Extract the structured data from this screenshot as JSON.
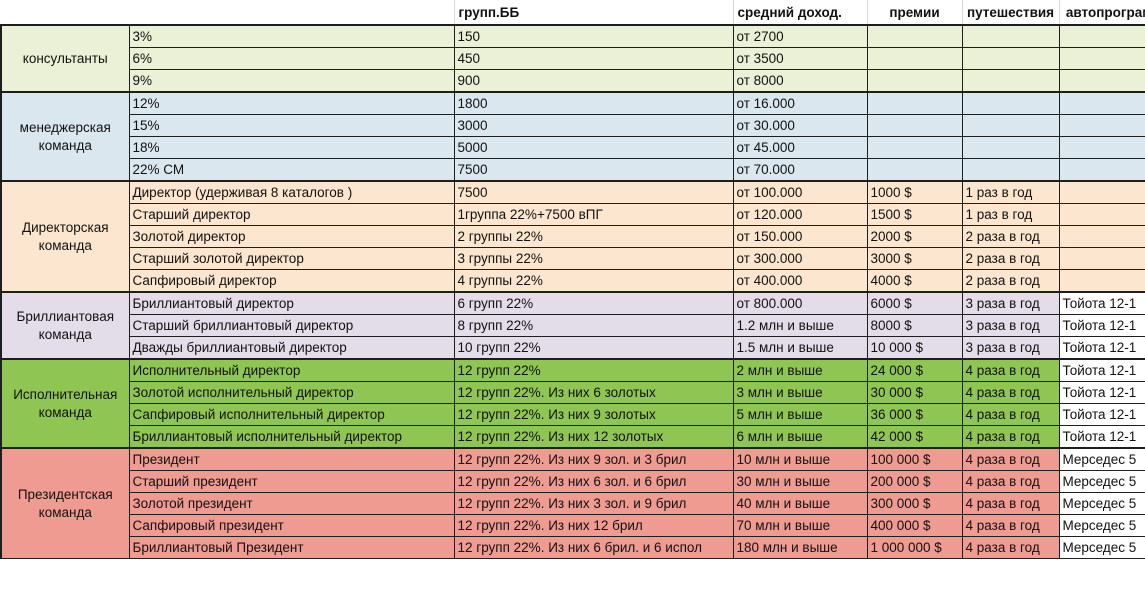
{
  "headers": [
    "",
    "",
    "групп.ББ",
    "средний доход.",
    "премии",
    "путешествия",
    "автопрограмма"
  ],
  "groups": [
    {
      "name": "консультанты",
      "cls": "g-cons",
      "rows": [
        {
          "level": "3%",
          "bb": "150",
          "income": " от 2700",
          "bonus": "",
          "travel": "",
          "car": ""
        },
        {
          "level": "6%",
          "bb": "450",
          "income": "от 3500",
          "bonus": "",
          "travel": "",
          "car": ""
        },
        {
          "level": "9%",
          "bb": "900",
          "income": "от 8000",
          "bonus": "",
          "travel": "",
          "car": ""
        }
      ]
    },
    {
      "name": "менеджерская команда",
      "cls": "g-mgr",
      "rows": [
        {
          "level": "12%",
          "bb": "1800",
          "income": "от 16.000",
          "bonus": "",
          "travel": "",
          "car": ""
        },
        {
          "level": "15%",
          "bb": "3000",
          "income": "от 30.000",
          "bonus": "",
          "travel": "",
          "car": ""
        },
        {
          "level": "18%",
          "bb": "5000",
          "income": "от 45.000",
          "bonus": "",
          "travel": "",
          "car": ""
        },
        {
          "level": "22% СМ",
          "bb": "7500",
          "income": "от 70.000",
          "bonus": "",
          "travel": "",
          "car": ""
        }
      ]
    },
    {
      "name": "Директорская команда",
      "cls": "g-dir",
      "rows": [
        {
          "level": "Директор  (удерживая 8 каталогов )",
          "bb": "7500",
          "income": "от 100.000",
          "bonus": "1000 $",
          "travel": "1 раз в год",
          "car": ""
        },
        {
          "level": "Старший директор",
          "bb": "1группа 22%+7500 вПГ",
          "income": "от 120.000",
          "bonus": "1500 $",
          "travel": "1 раз в год",
          "car": ""
        },
        {
          "level": "Золотой директор",
          "bb": "2 группы 22%",
          "income": "от 150.000",
          "bonus": "2000 $",
          "travel": "2 раза в год",
          "car": ""
        },
        {
          "level": "Старший золотой директор",
          "bb": "3 группы 22%",
          "income": "от 300.000",
          "bonus": "3000 $",
          "travel": "2 раза в год",
          "car": ""
        },
        {
          "level": "Сапфировый директор",
          "bb": "4 группы 22%",
          "income": "от 400.000",
          "bonus": "4000 $",
          "travel": "2 раза в год",
          "car": ""
        }
      ]
    },
    {
      "name": "Бриллиантовая команда",
      "cls": "g-bril",
      "rows": [
        {
          "level": "Бриллиантовый директор",
          "bb": "6 групп 22%",
          "income": "от 800.000",
          "bonus": "6000 $",
          "travel": "3 раза в год",
          "car": "Тойота 12-1"
        },
        {
          "level": "Старший бриллиантовый директор",
          "bb": "8 групп 22%",
          "income": "1.2 млн и выше",
          "bonus": "8000 $",
          "travel": "3 раза в год",
          "car": "Тойота 12-1"
        },
        {
          "level": "Дважды бриллиантовый директор",
          "bb": "10 групп 22%",
          "income": "1.5 млн и выше",
          "bonus": "10 000 $",
          "travel": "3 раза в год",
          "car": "Тойота 12-1"
        }
      ]
    },
    {
      "name": "Исполнительная команда",
      "cls": "g-exec",
      "rows": [
        {
          "level": "Исполнительный директор",
          "bb": "12 групп 22%",
          "income": "2 млн и выше",
          "bonus": "24 000 $",
          "travel": "4 раза в год",
          "car": "Тойота 12-1"
        },
        {
          "level": "Золотой исполнительный директор",
          "bb": "12 групп 22%. Из них 6 золотых",
          "income": "3 млн и выше",
          "bonus": "30 000 $",
          "travel": "4 раза в год",
          "car": "Тойота 12-1"
        },
        {
          "level": "Сапфировый исполнительный директор",
          "bb": "12 групп 22%. Из них 9 золотых",
          "income": "5 млн и выше",
          "bonus": "36 000 $",
          "travel": "4 раза в год",
          "car": "Тойота 12-1"
        },
        {
          "level": "Бриллиантовый исполнительный директор",
          "bb": "12 групп 22%. Из них 12 золотых",
          "income": "6 млн и выше",
          "bonus": "42 000 $",
          "travel": "4 раза в год",
          "car": "Тойота 12-1"
        }
      ]
    },
    {
      "name": "Президентская команда",
      "cls": "g-pres",
      "rows": [
        {
          "level": "Президент",
          "bb": "12 групп 22%. Из них 9 зол. и 3 брил",
          "income": "10 млн и выше",
          "bonus": "100 000 $",
          "travel": "4 раза в год",
          "car": "Мерседес 5"
        },
        {
          "level": "Старший президент",
          "bb": "12 групп 22%. Из них 6 зол. и 6 брил",
          "income": "30 млн и выше",
          "bonus": "200 000 $",
          "travel": "4 раза в год",
          "car": "Мерседес 5"
        },
        {
          "level": "Золотой президент",
          "bb": "12 групп 22%. Из них 3 зол. и 9 брил",
          "income": "40 млн и выше",
          "bonus": "300 000 $",
          "travel": "4 раза в год",
          "car": "Мерседес 5"
        },
        {
          "level": "Сапфировый президент",
          "bb": "12 групп 22%. Из них 12 брил",
          "income": "70 млн и выше",
          "bonus": "400 000 $",
          "travel": "4 раза в год",
          "car": "Мерседес 5"
        },
        {
          "level": "Бриллиантовый Президент",
          "bb": "12 групп 22%. Из них 6 брил. и 6 испол",
          "income": "180 млн и выше",
          "bonus": "1 000 000 $",
          "travel": "4 раза в год",
          "car": "Мерседес 5"
        }
      ]
    }
  ]
}
